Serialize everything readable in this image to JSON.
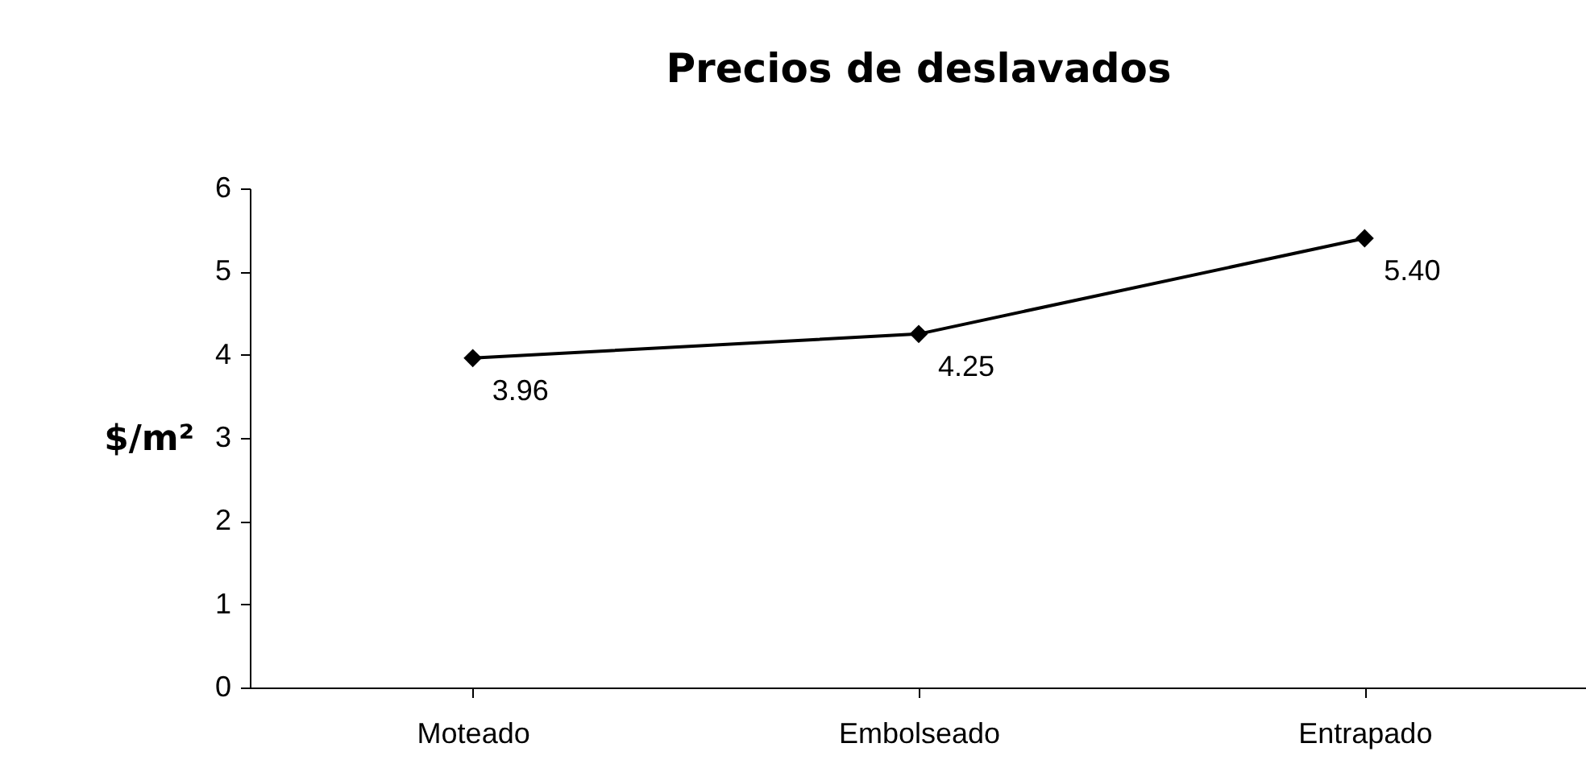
{
  "chart_data": {
    "type": "line",
    "title": "Precios de deslavados",
    "ylabel": "$/m²",
    "categories": [
      "Moteado",
      "Embolseado",
      "Entrapado"
    ],
    "series": [
      {
        "color": "#000000",
        "values": [
          3.96,
          4.25,
          5.4
        ],
        "value_labels": [
          "3.96",
          "4.25",
          "5.40"
        ]
      }
    ],
    "ylim": [
      0,
      6
    ],
    "yticks": [
      0,
      1,
      2,
      3,
      4,
      5,
      6
    ],
    "grid": false,
    "marker": "diamond",
    "line_style": "solid"
  }
}
